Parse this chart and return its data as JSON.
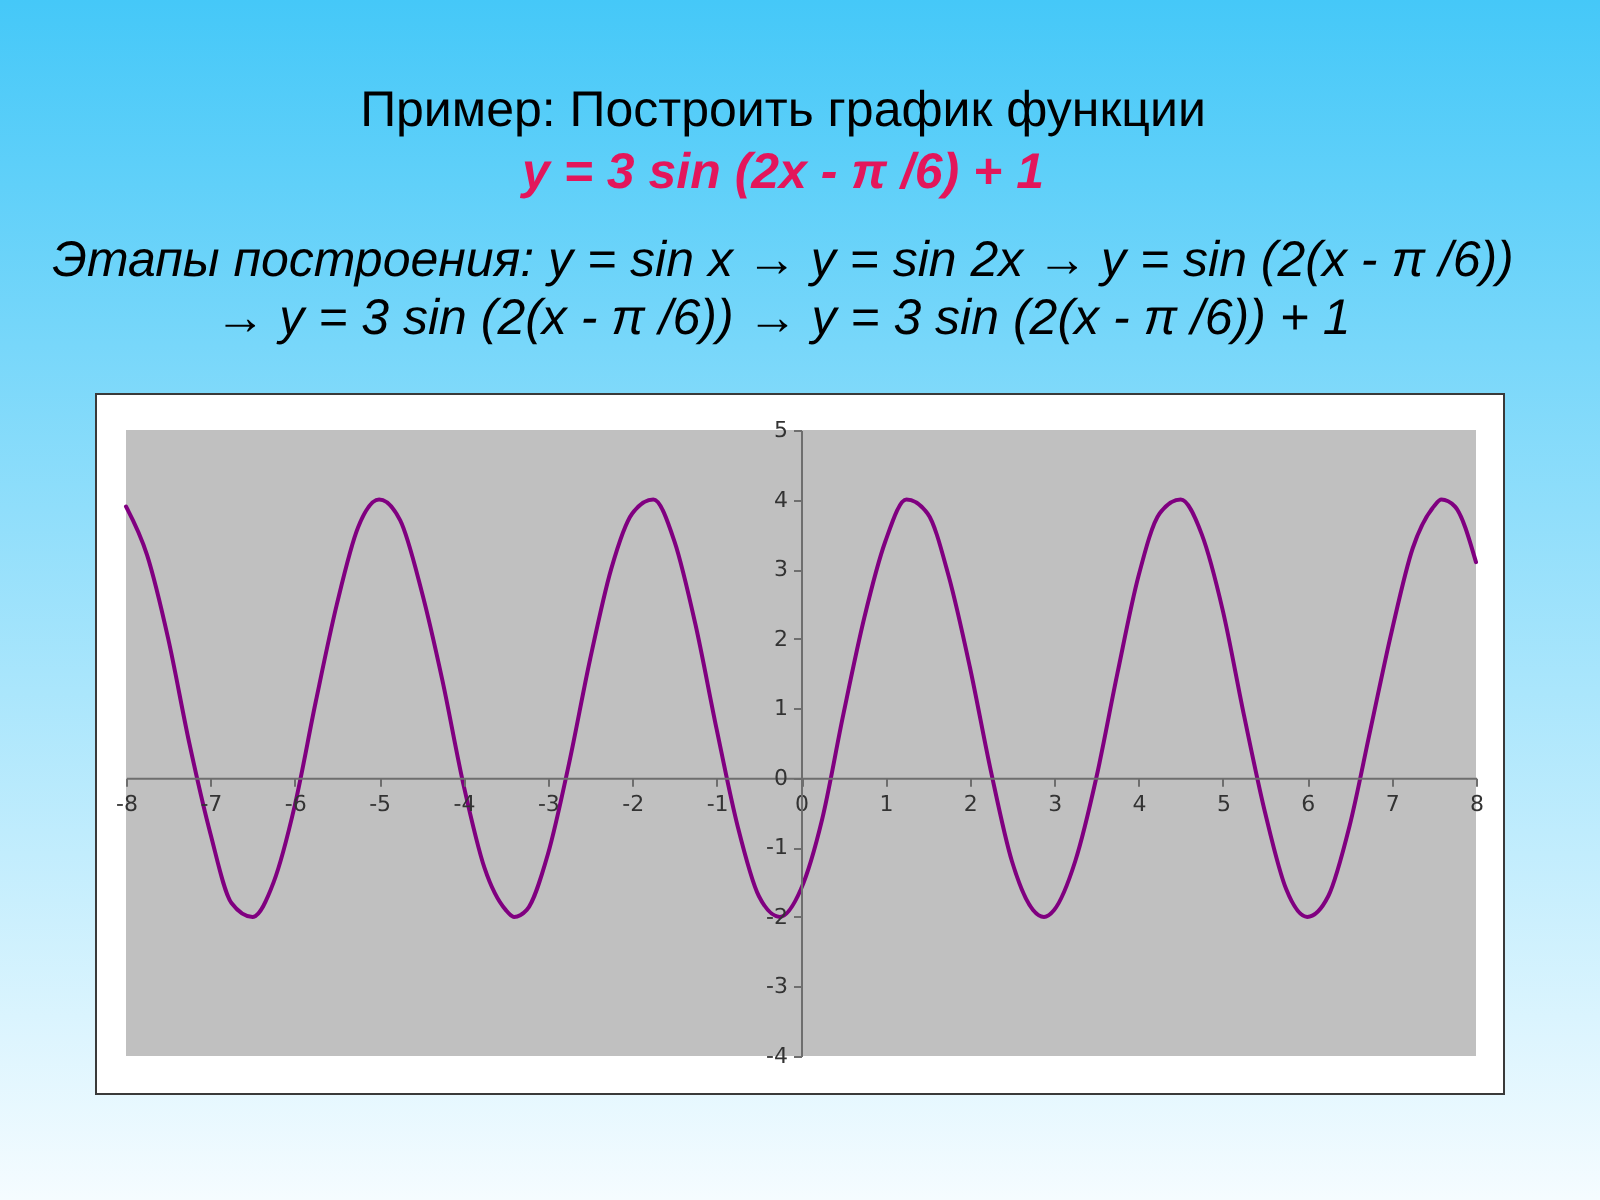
{
  "chart_data": {
    "type": "line",
    "title": "Пример: Построить график функции",
    "subtitle": "y = 3 sin (2x - π /6) + 1",
    "annotations": [
      "Этапы построения: y = sin x → y = sin 2x → y = sin (2(x - π /6))",
      "→ y = 3 sin (2(x - π /6)) → y = 3 sin (2(x - π /6)) + 1"
    ],
    "x": [
      -8,
      -7.75,
      -7.5,
      -7.25,
      -7,
      -6.75,
      -6.5,
      -6.25,
      -6,
      -5.75,
      -5.5,
      -5.25,
      -5,
      -4.75,
      -4.5,
      -4.25,
      -4,
      -3.75,
      -3.5,
      -3.4,
      -3.25,
      -3,
      -2.75,
      -2.5,
      -2.25,
      -2,
      -1.75,
      -1.5,
      -1.25,
      -1,
      -0.75,
      -0.5,
      -0.25,
      0,
      0.25,
      0.5,
      0.75,
      1,
      1.25,
      1.5,
      1.75,
      2,
      2.25,
      2.5,
      2.75,
      2.88,
      3,
      3.25,
      3.5,
      3.75,
      4,
      4.25,
      4.5,
      4.75,
      5,
      5.25,
      5.5,
      5.75,
      6,
      6.25,
      6.5,
      6.75,
      7,
      7.25,
      7.5,
      7.59,
      7.75,
      8
    ],
    "series": [
      {
        "color": "#800080",
        "values": [
          3.9,
          3.2,
          2.0,
          0.5,
          -0.8,
          -1.8,
          -2.0,
          -1.5,
          -0.4,
          1.1,
          2.5,
          3.6,
          4.0,
          3.7,
          2.7,
          1.4,
          -0.1,
          -1.3,
          -1.9,
          -2.0,
          -1.9,
          -1.1,
          0.2,
          1.7,
          3.0,
          3.8,
          4.0,
          3.4,
          2.2,
          0.7,
          -0.7,
          -1.7,
          -2.0,
          -1.6,
          -0.6,
          0.9,
          2.3,
          3.4,
          4.0,
          3.8,
          2.9,
          1.6,
          0.1,
          -1.2,
          -1.9,
          -2.0,
          -1.9,
          -1.2,
          0.0,
          1.5,
          2.9,
          3.8,
          4.0,
          3.5,
          2.4,
          0.9,
          -0.5,
          -1.6,
          -2.0,
          -1.7,
          -0.7,
          0.7,
          2.1,
          3.3,
          3.9,
          4.0,
          3.9,
          3.1
        ]
      }
    ],
    "xlim": [
      -8,
      8
    ],
    "ylim": [
      -4,
      5
    ],
    "xticks": [
      -8,
      -7,
      -6,
      -5,
      -4,
      -3,
      -2,
      -1,
      0,
      1,
      2,
      3,
      4,
      5,
      6,
      7,
      8
    ],
    "yticks": [
      -4,
      -3,
      -2,
      -1,
      0,
      1,
      2,
      3,
      4,
      5
    ],
    "line_style": "solid"
  }
}
